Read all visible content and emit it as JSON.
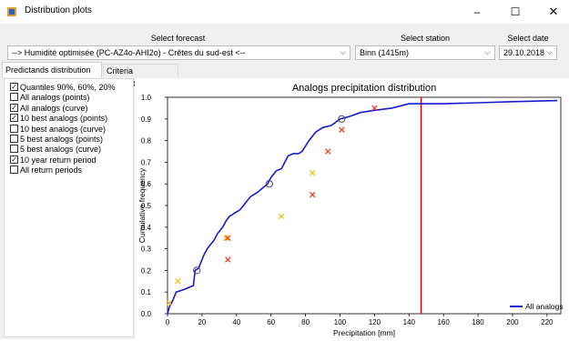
{
  "window": {
    "title": "Distribution plots",
    "minimize": "–",
    "maximize": "☐",
    "close": "✕"
  },
  "controls": {
    "forecast_label": "Select forecast",
    "forecast_value": "--> Humidité optimisée (PC-AZ4o-AHI2o) - Crêtes du sud-est <--",
    "station_label": "Select station",
    "station_value": "Binn (1415m)",
    "date_label": "Select date",
    "date_value": "29.10.2018"
  },
  "tabs": [
    {
      "label": "Predictands distribution",
      "active": true
    },
    {
      "label": "Criteria distribution",
      "active": false
    }
  ],
  "options": [
    {
      "label": "Quantiles 90%, 60%, 20%",
      "checked": true
    },
    {
      "label": "All analogs (points)",
      "checked": false
    },
    {
      "label": "All analogs (curve)",
      "checked": true
    },
    {
      "label": "10 best analogs (points)",
      "checked": true
    },
    {
      "label": "10 best analogs (curve)",
      "checked": false
    },
    {
      "label": "5 best analogs (points)",
      "checked": false
    },
    {
      "label": "5 best analogs (curve)",
      "checked": false
    },
    {
      "label": "10 year return period",
      "checked": true
    },
    {
      "label": "All return periods",
      "checked": false
    }
  ],
  "chart_data": {
    "type": "line",
    "title": "Analogs precipitation distribution",
    "xlabel": "Precipitation [mm]",
    "ylabel": "Cumulative frequency",
    "xlim": [
      0,
      228
    ],
    "ylim": [
      0,
      1.0
    ],
    "xticks": [
      0,
      20,
      40,
      60,
      80,
      100,
      120,
      140,
      160,
      180,
      200,
      220
    ],
    "yticks": [
      0.0,
      0.1,
      0.2,
      0.3,
      0.4,
      0.5,
      0.6,
      0.7,
      0.8,
      0.9,
      1.0
    ],
    "legend": {
      "label": "All analogs",
      "position": "bottom-right"
    },
    "colors": {
      "curve": "#1a1acc",
      "return_period": "#d40000",
      "best_analogs": "#e84020",
      "yellow_marks": "#f0c020"
    },
    "series": [
      {
        "name": "All analogs",
        "x": [
          0,
          1,
          3,
          5,
          9,
          12,
          15,
          16,
          18,
          19,
          21,
          23,
          25,
          27,
          29,
          30,
          32,
          34,
          36,
          38,
          40,
          42,
          44,
          46,
          48,
          50,
          52,
          55,
          58,
          60,
          63,
          66,
          70,
          73,
          76,
          78,
          82,
          86,
          90,
          95,
          100,
          105,
          112,
          120,
          130,
          140,
          145,
          160,
          180,
          200,
          226
        ],
        "y": [
          0.0,
          0.03,
          0.06,
          0.1,
          0.11,
          0.12,
          0.13,
          0.2,
          0.21,
          0.23,
          0.27,
          0.3,
          0.32,
          0.34,
          0.37,
          0.38,
          0.4,
          0.43,
          0.45,
          0.46,
          0.47,
          0.48,
          0.5,
          0.52,
          0.54,
          0.55,
          0.56,
          0.58,
          0.6,
          0.63,
          0.66,
          0.67,
          0.73,
          0.74,
          0.74,
          0.75,
          0.8,
          0.84,
          0.86,
          0.87,
          0.9,
          0.91,
          0.93,
          0.94,
          0.95,
          0.97,
          0.97,
          0.97,
          0.975,
          0.98,
          0.985
        ]
      }
    ],
    "quantile_points": [
      {
        "x": 17,
        "y": 0.2
      },
      {
        "x": 59,
        "y": 0.6
      },
      {
        "x": 101,
        "y": 0.9
      }
    ],
    "best_analogs_red": [
      {
        "x": 35,
        "y": 0.25
      },
      {
        "x": 35,
        "y": 0.35
      },
      {
        "x": 84,
        "y": 0.55
      },
      {
        "x": 93,
        "y": 0.75
      },
      {
        "x": 101,
        "y": 0.85
      },
      {
        "x": 120,
        "y": 0.95
      }
    ],
    "best_analogs_yellow": [
      {
        "x": 1,
        "y": 0.05
      },
      {
        "x": 6,
        "y": 0.15
      },
      {
        "x": 34,
        "y": 0.35
      },
      {
        "x": 66,
        "y": 0.45
      },
      {
        "x": 84,
        "y": 0.65
      }
    ],
    "return_period_x": 147
  }
}
